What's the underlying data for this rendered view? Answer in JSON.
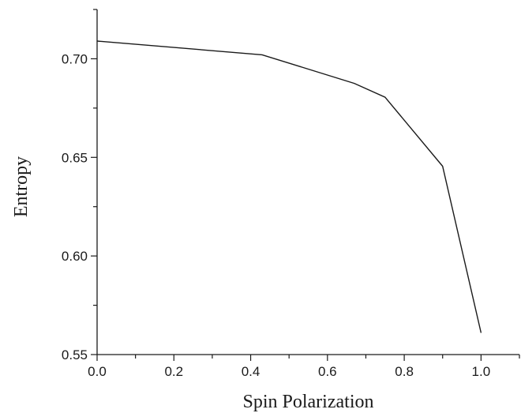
{
  "chart_data": {
    "type": "line",
    "title": "",
    "xlabel": "Spin Polarization",
    "ylabel": "Entropy",
    "xlim": [
      0.0,
      1.1
    ],
    "ylim": [
      0.55,
      0.725
    ],
    "x_ticks": [
      0.0,
      0.2,
      0.4,
      0.6,
      0.8,
      1.0
    ],
    "x_tick_labels": [
      "0.0",
      "0.2",
      "0.4",
      "0.6",
      "0.8",
      "1.0"
    ],
    "y_ticks": [
      0.55,
      0.6,
      0.65,
      0.7
    ],
    "y_tick_labels": [
      "0.55",
      "0.60",
      "0.65",
      "0.70"
    ],
    "grid": false,
    "legend": "none",
    "series": [
      {
        "x": [
          0.0,
          0.43,
          0.67,
          0.75,
          0.9,
          1.0
        ],
        "y": [
          0.709,
          0.702,
          0.6875,
          0.6805,
          0.6455,
          0.561
        ]
      }
    ],
    "colors": {
      "line": "#1a1a1a",
      "axis": "#1a1a1a",
      "background": "#ffffff"
    }
  }
}
